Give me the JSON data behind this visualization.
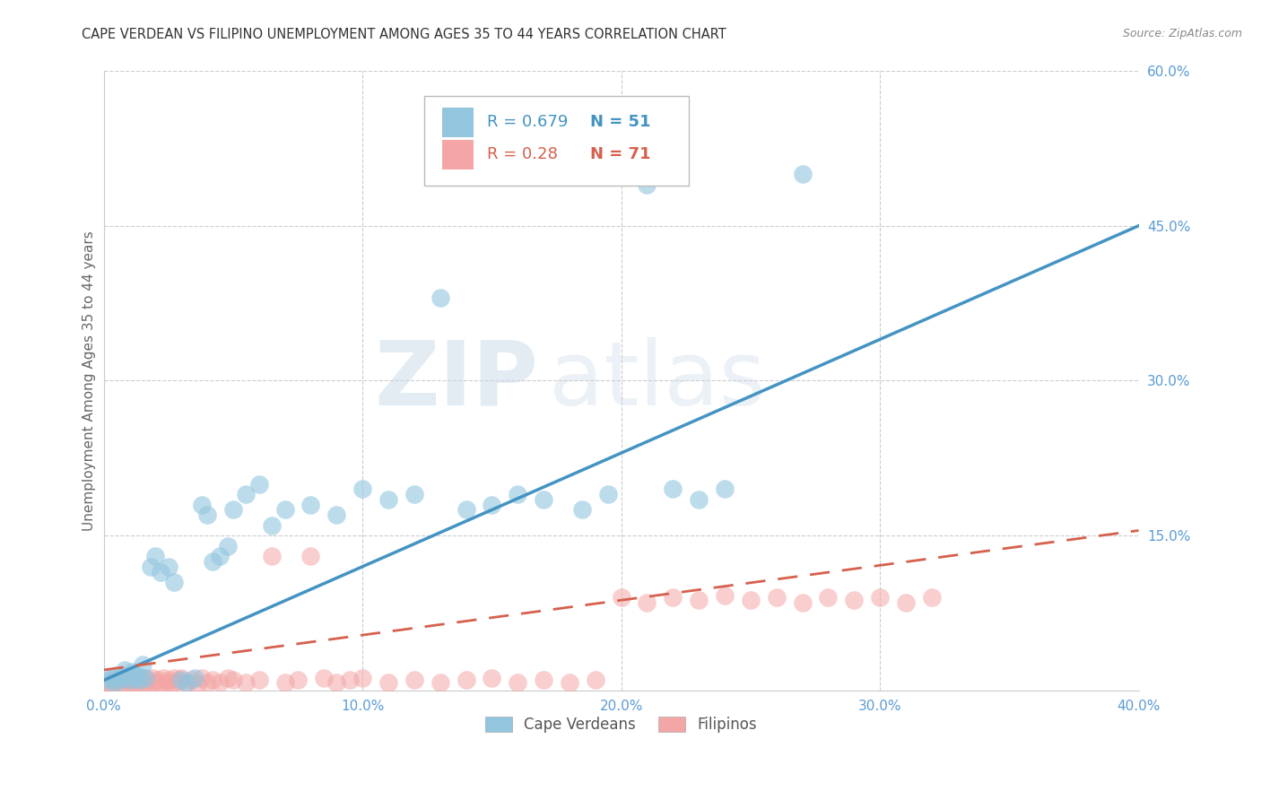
{
  "title": "CAPE VERDEAN VS FILIPINO UNEMPLOYMENT AMONG AGES 35 TO 44 YEARS CORRELATION CHART",
  "source": "Source: ZipAtlas.com",
  "ylabel": "Unemployment Among Ages 35 to 44 years",
  "xlim": [
    0.0,
    0.4
  ],
  "ylim": [
    0.0,
    0.6
  ],
  "xticks": [
    0.0,
    0.1,
    0.2,
    0.3,
    0.4
  ],
  "yticks": [
    0.0,
    0.15,
    0.3,
    0.45,
    0.6
  ],
  "xtick_labels": [
    "0.0%",
    "10.0%",
    "20.0%",
    "30.0%",
    "40.0%"
  ],
  "ytick_labels": [
    "",
    "15.0%",
    "30.0%",
    "45.0%",
    "60.0%"
  ],
  "watermark_zip": "ZIP",
  "watermark_atlas": "atlas",
  "cape_verdean_color": "#92c5de",
  "filipino_color": "#f4a6a6",
  "cape_verdean_R": 0.679,
  "cape_verdean_N": 51,
  "filipino_R": 0.28,
  "filipino_N": 71,
  "cv_line_color": "#4393c3",
  "fil_line_color": "#d6604d",
  "grid_color": "#cccccc",
  "axis_label_color": "#5b9bd5",
  "cv_scatter_x": [
    0.002,
    0.003,
    0.004,
    0.005,
    0.006,
    0.007,
    0.008,
    0.009,
    0.01,
    0.011,
    0.012,
    0.013,
    0.014,
    0.015,
    0.016,
    0.018,
    0.02,
    0.022,
    0.025,
    0.027,
    0.03,
    0.032,
    0.035,
    0.038,
    0.04,
    0.042,
    0.045,
    0.048,
    0.05,
    0.055,
    0.06,
    0.065,
    0.07,
    0.08,
    0.09,
    0.1,
    0.11,
    0.12,
    0.13,
    0.14,
    0.15,
    0.16,
    0.17,
    0.185,
    0.195,
    0.2,
    0.21,
    0.22,
    0.23,
    0.24,
    0.27
  ],
  "cv_scatter_y": [
    0.01,
    0.012,
    0.008,
    0.015,
    0.01,
    0.012,
    0.02,
    0.015,
    0.01,
    0.018,
    0.012,
    0.015,
    0.01,
    0.025,
    0.012,
    0.12,
    0.13,
    0.115,
    0.12,
    0.105,
    0.01,
    0.008,
    0.012,
    0.18,
    0.17,
    0.125,
    0.13,
    0.14,
    0.175,
    0.19,
    0.2,
    0.16,
    0.175,
    0.18,
    0.17,
    0.195,
    0.185,
    0.19,
    0.38,
    0.175,
    0.18,
    0.19,
    0.185,
    0.175,
    0.19,
    0.5,
    0.49,
    0.195,
    0.185,
    0.195,
    0.5
  ],
  "fil_scatter_x": [
    0.001,
    0.002,
    0.003,
    0.004,
    0.005,
    0.006,
    0.007,
    0.008,
    0.009,
    0.01,
    0.011,
    0.012,
    0.013,
    0.014,
    0.015,
    0.016,
    0.017,
    0.018,
    0.019,
    0.02,
    0.021,
    0.022,
    0.023,
    0.024,
    0.025,
    0.026,
    0.027,
    0.028,
    0.029,
    0.03,
    0.032,
    0.034,
    0.036,
    0.038,
    0.04,
    0.042,
    0.045,
    0.048,
    0.05,
    0.055,
    0.06,
    0.065,
    0.07,
    0.075,
    0.08,
    0.085,
    0.09,
    0.095,
    0.1,
    0.11,
    0.12,
    0.13,
    0.14,
    0.15,
    0.16,
    0.17,
    0.18,
    0.19,
    0.2,
    0.21,
    0.22,
    0.23,
    0.24,
    0.25,
    0.26,
    0.27,
    0.28,
    0.29,
    0.3,
    0.31,
    0.32
  ],
  "fil_scatter_y": [
    0.005,
    0.008,
    0.006,
    0.01,
    0.008,
    0.012,
    0.006,
    0.01,
    0.008,
    0.012,
    0.006,
    0.01,
    0.008,
    0.006,
    0.012,
    0.008,
    0.01,
    0.006,
    0.012,
    0.008,
    0.01,
    0.006,
    0.012,
    0.008,
    0.01,
    0.006,
    0.012,
    0.008,
    0.01,
    0.012,
    0.008,
    0.01,
    0.006,
    0.012,
    0.008,
    0.01,
    0.008,
    0.012,
    0.01,
    0.008,
    0.01,
    0.13,
    0.008,
    0.01,
    0.13,
    0.012,
    0.008,
    0.01,
    0.012,
    0.008,
    0.01,
    0.008,
    0.01,
    0.012,
    0.008,
    0.01,
    0.008,
    0.01,
    0.09,
    0.085,
    0.09,
    0.088,
    0.092,
    0.088,
    0.09,
    0.085,
    0.09,
    0.088,
    0.09,
    0.085,
    0.09
  ],
  "background_color": "#ffffff",
  "title_fontsize": 10.5,
  "axis_tick_fontsize": 11,
  "ylabel_fontsize": 11,
  "legend_fontsize": 13
}
